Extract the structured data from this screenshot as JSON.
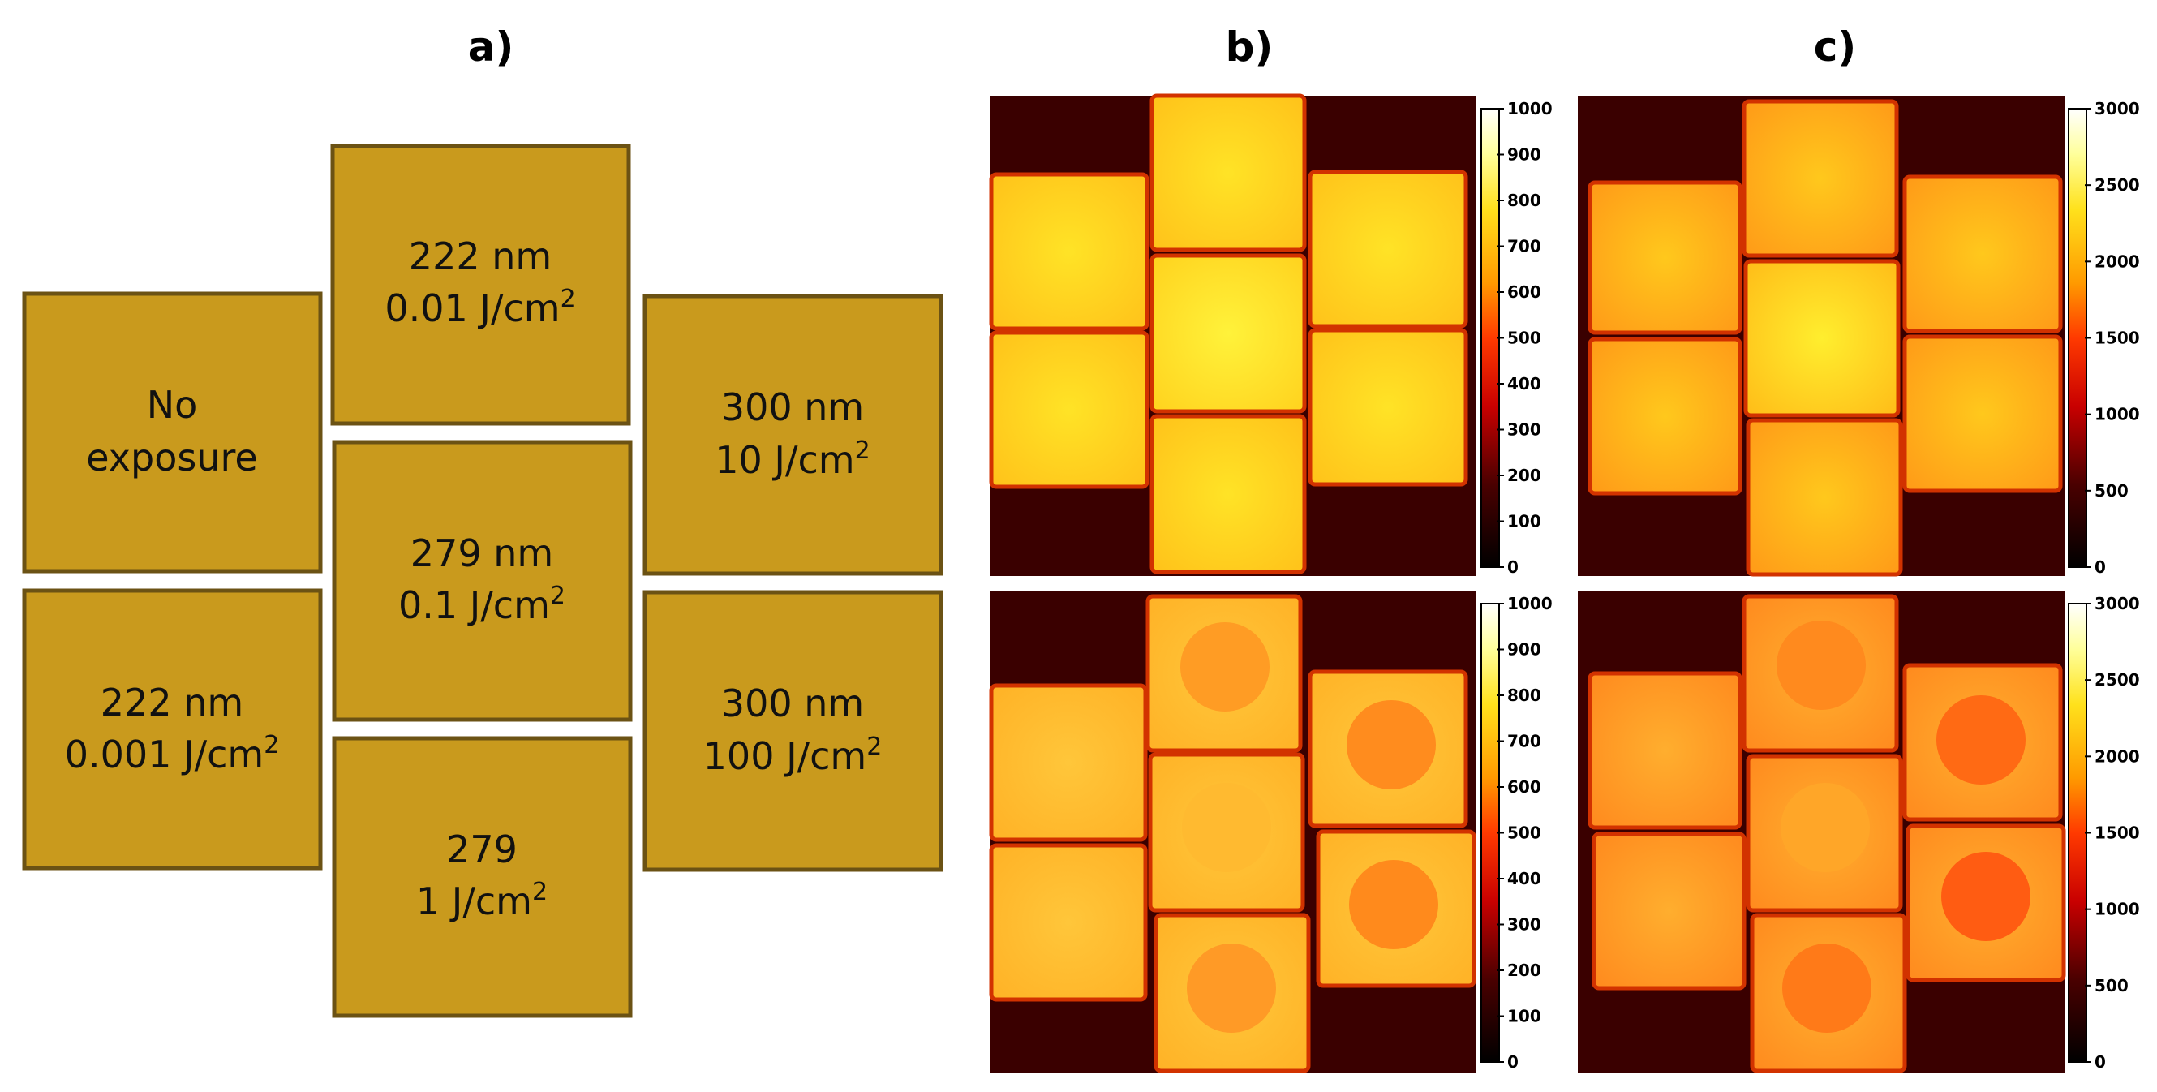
{
  "panels": {
    "a": "a)",
    "b": "b)",
    "c": "c)"
  },
  "panel_a": {
    "tiles": [
      {
        "id": "top-center",
        "line1": "222 nm",
        "line2_main": "0.01 J/cm",
        "line2_sup": "2"
      },
      {
        "id": "left-upper",
        "line1": "No",
        "line2_main": "exposure",
        "line2_sup": ""
      },
      {
        "id": "center-middle",
        "line1": "279 nm",
        "line2_main": "0.1 J/cm",
        "line2_sup": "2"
      },
      {
        "id": "right-upper",
        "line1": "300 nm",
        "line2_main": "10 J/cm",
        "line2_sup": "2"
      },
      {
        "id": "left-lower",
        "line1": "222 nm",
        "line2_main": "0.001 J/cm",
        "line2_sup": "2"
      },
      {
        "id": "right-lower",
        "line1": "300 nm",
        "line2_main": "100 J/cm",
        "line2_sup": "2"
      },
      {
        "id": "bottom-center",
        "line1": "279",
        "line2_main": "1 J/cm",
        "line2_sup": "2"
      }
    ],
    "tile_color": "#c99a1d"
  },
  "colorbars": {
    "b": {
      "max": 1000,
      "ticks": [
        "0",
        "100",
        "200",
        "300",
        "400",
        "500",
        "600",
        "700",
        "800",
        "900",
        "1000"
      ]
    },
    "c": {
      "max": 3000,
      "ticks": [
        "0",
        "500",
        "1000",
        "1500",
        "2000",
        "2500",
        "3000"
      ]
    }
  },
  "colormap": "hot"
}
